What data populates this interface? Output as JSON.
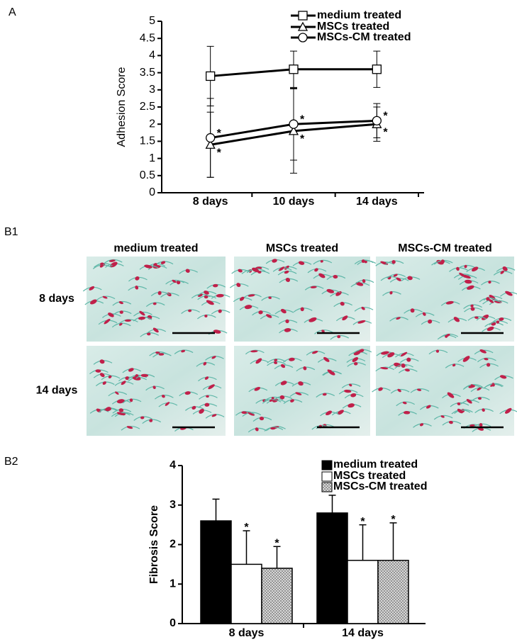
{
  "panels": {
    "a": "A",
    "b1": "B1",
    "b2": "B2"
  },
  "micrographs": {
    "columns": [
      "medium treated",
      "MSCs treated",
      "MSCs-CM treated"
    ],
    "rows": [
      "8 days",
      "14 days"
    ]
  },
  "chart_data": [
    {
      "type": "line",
      "ylabel": "Adhesion Score",
      "categories": [
        "8 days",
        "10 days",
        "14 days"
      ],
      "ylim": [
        0,
        5
      ],
      "yticks": [
        0,
        0.5,
        1,
        1.5,
        2,
        2.5,
        3,
        3.5,
        4,
        4.5,
        5
      ],
      "series": [
        {
          "name": "medium treated",
          "color": "#000000",
          "marker": "square",
          "values": [
            3.4,
            3.6,
            3.6
          ],
          "errors": [
            0.87,
            0.53,
            0.53
          ]
        },
        {
          "name": "MSCs treated",
          "color": "#000000",
          "marker": "triangle",
          "values": [
            1.4,
            1.8,
            2.0
          ],
          "errors": [
            0.95,
            1.23,
            0.5
          ],
          "annotations": [
            "*",
            "*",
            "*"
          ]
        },
        {
          "name": "MSCs-CM treated",
          "color": "#000000",
          "marker": "circle",
          "values": [
            1.6,
            2.0,
            2.1
          ],
          "errors": [
            1.15,
            1.05,
            0.5
          ],
          "annotations": [
            "*",
            "*",
            "*"
          ]
        }
      ]
    },
    {
      "type": "bar",
      "ylabel": "Fibrosis Score",
      "categories": [
        "8 days",
        "14 days"
      ],
      "ylim": [
        0,
        4
      ],
      "yticks": [
        0,
        1,
        2,
        3,
        4
      ],
      "series": [
        {
          "name": "medium treated",
          "color": "#000000",
          "values": [
            2.6,
            2.8
          ],
          "errors": [
            0.55,
            0.45
          ]
        },
        {
          "name": "MSCs treated",
          "color": "#ffffff",
          "values": [
            1.5,
            1.6
          ],
          "errors": [
            0.85,
            0.9
          ],
          "annotations": [
            "*",
            "*"
          ]
        },
        {
          "name": "MSCs-CM treated",
          "color": "#cccccc",
          "hatch": true,
          "values": [
            1.4,
            1.6
          ],
          "errors": [
            0.55,
            0.95
          ],
          "annotations": [
            "*",
            "*"
          ]
        }
      ]
    }
  ]
}
